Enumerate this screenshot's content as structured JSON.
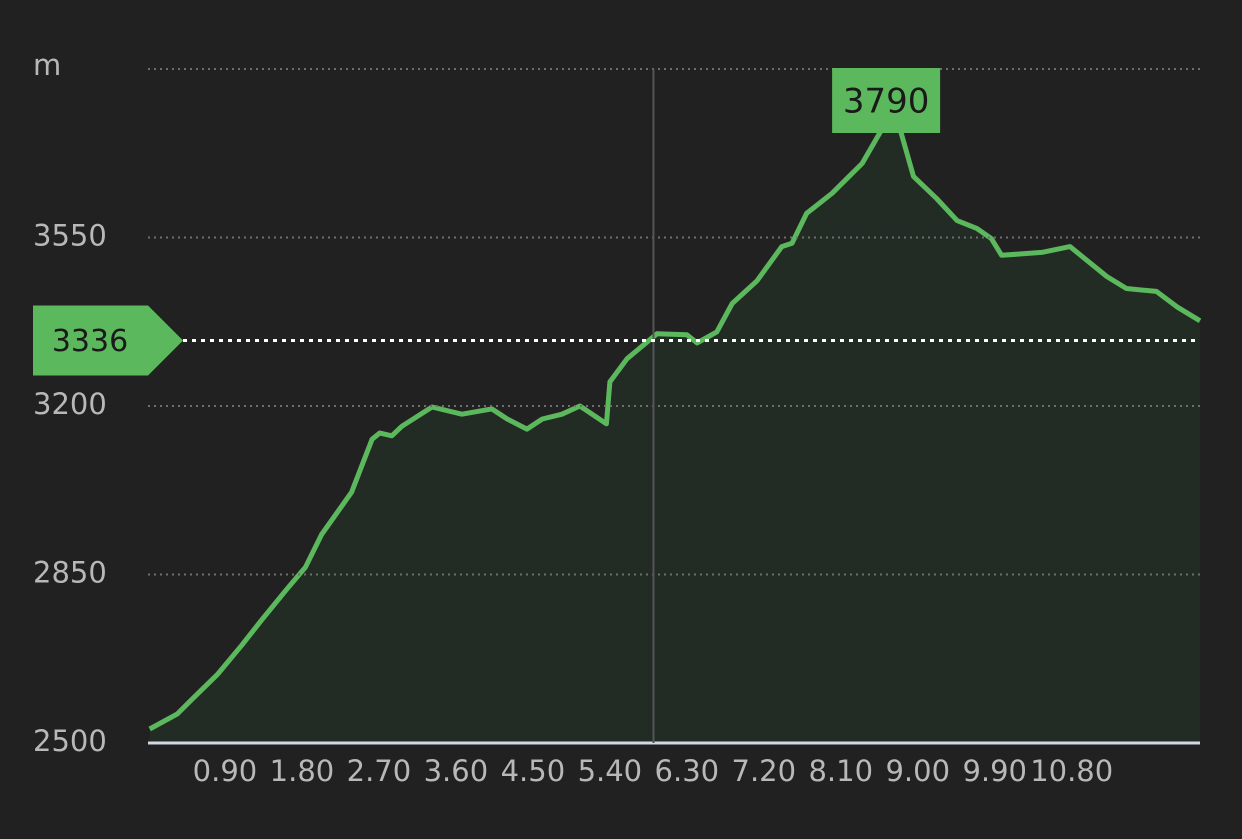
{
  "chart_data": {
    "type": "area",
    "color": "#5cb85c",
    "fill": "#232b25",
    "grid": true,
    "xlim": [
      0,
      12.3
    ],
    "ylim": [
      2500,
      3900
    ],
    "xticks": [
      {
        "value": 0.9,
        "label": "0.90"
      },
      {
        "value": 1.8,
        "label": "1.80"
      },
      {
        "value": 2.7,
        "label": "2.70"
      },
      {
        "value": 3.6,
        "label": "3.60"
      },
      {
        "value": 4.5,
        "label": "4.50"
      },
      {
        "value": 5.4,
        "label": "5.40"
      },
      {
        "value": 6.3,
        "label": "6.30"
      },
      {
        "value": 7.2,
        "label": "7.20"
      },
      {
        "value": 8.1,
        "label": "8.10"
      },
      {
        "value": 9.0,
        "label": "9.00"
      },
      {
        "value": 9.9,
        "label": "9.90"
      },
      {
        "value": 10.8,
        "label": "10.80"
      }
    ],
    "yticks": [
      2500,
      2850,
      3200,
      3550,
      {
        "value": 3900,
        "label": "m"
      }
    ],
    "x": [
      0.02,
      0.34,
      0.51,
      0.81,
      1.1,
      1.33,
      1.62,
      1.84,
      2.03,
      2.38,
      2.62,
      2.71,
      2.85,
      2.97,
      3.32,
      3.67,
      4.02,
      4.2,
      4.43,
      4.61,
      4.84,
      5.05,
      5.36,
      5.4,
      5.6,
      5.95,
      6.3,
      6.42,
      6.65,
      6.83,
      7.12,
      7.41,
      7.53,
      7.7,
      8.0,
      8.35,
      8.63,
      8.79,
      8.95,
      9.22,
      9.46,
      9.69,
      9.86,
      9.98,
      10.45,
      10.78,
      11.21,
      11.44,
      11.79,
      12.03,
      12.3
    ],
    "values": [
      2529,
      2560,
      2590,
      2642,
      2704,
      2756,
      2819,
      2865,
      2933,
      3021,
      3131,
      3144,
      3138,
      3158,
      3198,
      3183,
      3194,
      3173,
      3152,
      3173,
      3183,
      3200,
      3163,
      3250,
      3298,
      3350,
      3348,
      3331,
      3354,
      3413,
      3460,
      3531,
      3538,
      3600,
      3642,
      3704,
      3790,
      3777,
      3677,
      3631,
      3585,
      3569,
      3548,
      3513,
      3519,
      3531,
      3469,
      3444,
      3438,
      3406,
      3377
    ],
    "cursor": {
      "x": 5.91,
      "value": 3336
    },
    "max_label": {
      "x": 8.63,
      "value": 3790
    }
  }
}
